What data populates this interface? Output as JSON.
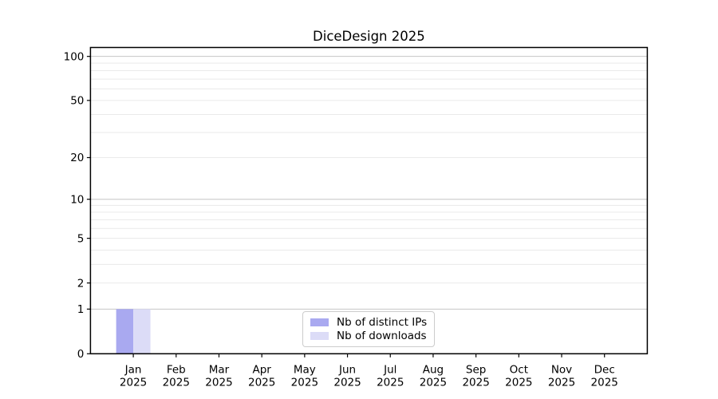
{
  "page": {
    "background": "#ffffff"
  },
  "chart_data": {
    "type": "bar",
    "title": "DiceDesign 2025",
    "categories": [
      "Jan",
      "Feb",
      "Mar",
      "Apr",
      "May",
      "Jun",
      "Jul",
      "Aug",
      "Sep",
      "Oct",
      "Nov",
      "Dec"
    ],
    "x_tick_year": "2025",
    "series": [
      {
        "name": "Nb of distinct IPs",
        "color": "#a9a9f0",
        "values": [
          1,
          0,
          0,
          0,
          0,
          0,
          0,
          0,
          0,
          0,
          0,
          0
        ]
      },
      {
        "name": "Nb of downloads",
        "color": "#dcdcf7",
        "values": [
          1,
          0,
          0,
          0,
          0,
          0,
          0,
          0,
          0,
          0,
          0,
          0
        ]
      }
    ],
    "xlabel": "",
    "ylabel": "",
    "y_scale": "log1p",
    "y_ticks": [
      0,
      1,
      2,
      5,
      10,
      20,
      50,
      100
    ],
    "y_major_gridlines": [
      1,
      10,
      100
    ],
    "y_minor_gridlines": [
      2,
      3,
      4,
      5,
      6,
      7,
      8,
      9,
      20,
      30,
      40,
      50,
      60,
      70,
      80,
      90
    ],
    "ylim": [
      0,
      115
    ],
    "grid": true,
    "legend_position": "lower center"
  },
  "colors": {
    "bar_distinct_ips": "#a9a9f0",
    "bar_downloads": "#dcdcf7",
    "grid_major": "#c6c6c6",
    "grid_minor": "#eaeaea",
    "spine": "#000000",
    "text": "#000000",
    "legend_border": "#cccccc",
    "legend_bg": "#ffffff"
  }
}
